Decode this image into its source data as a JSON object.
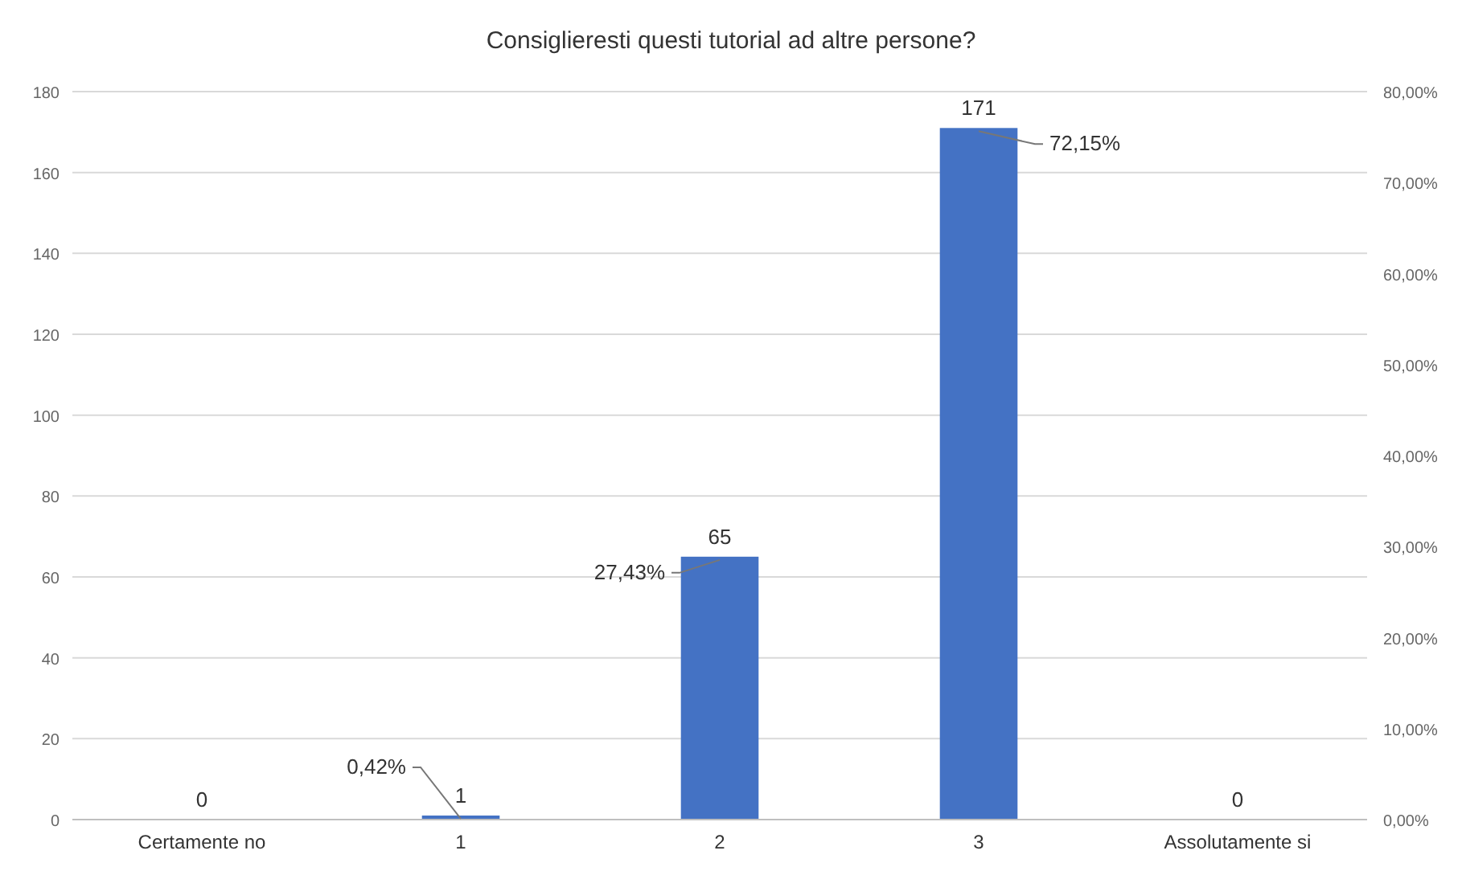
{
  "chart_data": {
    "type": "bar",
    "title": "Consiglieresti questi tutorial ad altre persone?",
    "categories": [
      "Certamente no",
      "1",
      "2",
      "3",
      "Assolutamente si"
    ],
    "values": [
      0,
      1,
      65,
      171,
      0
    ],
    "color": "#4472c4",
    "data_labels": true,
    "ylim": [
      0,
      180
    ],
    "yticks": [
      0,
      20,
      40,
      60,
      80,
      100,
      120,
      140,
      160,
      180
    ],
    "y2lim": [
      0,
      80
    ],
    "y2ticks": [
      {
        "value": 0,
        "label": "0,00%"
      },
      {
        "value": 10,
        "label": "10,00%"
      },
      {
        "value": 20,
        "label": "20,00%"
      },
      {
        "value": 30,
        "label": "30,00%"
      },
      {
        "value": 40,
        "label": "40,00%"
      },
      {
        "value": 50,
        "label": "50,00%"
      },
      {
        "value": 60,
        "label": "60,00%"
      },
      {
        "value": 70,
        "label": "70,00%"
      },
      {
        "value": 80,
        "label": "80,00%"
      }
    ],
    "grid": "y",
    "annotations": [
      {
        "text": "0,42%",
        "x": "1",
        "y": 1
      },
      {
        "text": "27,43%",
        "x": "2",
        "y": 65
      },
      {
        "text": "72,15%",
        "x": "3",
        "y": 171
      }
    ]
  }
}
